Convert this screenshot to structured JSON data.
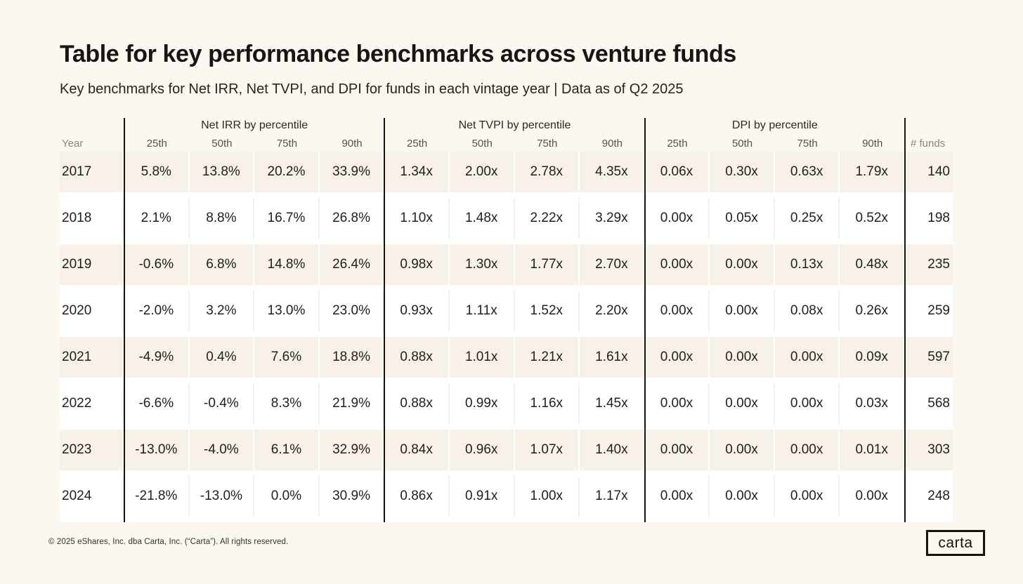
{
  "page": {
    "title": "Table for key performance benchmarks across venture funds",
    "subtitle": "Key benchmarks for Net IRR, Net TVPI, and DPI for funds in each vintage year | Data as of Q2 2025",
    "footer": "© 2025 eShares, Inc. dba Carta, Inc. (“Carta”). All rights reserved.",
    "logo_text": "carta"
  },
  "colors": {
    "background": "#FCF7F0",
    "row_stripe": "#F8F1E9",
    "row_white": "#FFFFFF",
    "divider": "#15140F",
    "text": "#201F1B",
    "muted_label": "#8B867B"
  },
  "table": {
    "year_header": "Year",
    "funds_header": "# funds",
    "groups": [
      {
        "label": "Net IRR by percentile",
        "cols": [
          "25th",
          "50th",
          "75th",
          "90th"
        ]
      },
      {
        "label": "Net TVPI by percentile",
        "cols": [
          "25th",
          "50th",
          "75th",
          "90th"
        ]
      },
      {
        "label": "DPI by percentile",
        "cols": [
          "25th",
          "50th",
          "75th",
          "90th"
        ]
      }
    ],
    "rows": [
      {
        "year": "2017",
        "irr": [
          "5.8%",
          "13.8%",
          "20.2%",
          "33.9%"
        ],
        "tvpi": [
          "1.34x",
          "2.00x",
          "2.78x",
          "4.35x"
        ],
        "dpi": [
          "0.06x",
          "0.30x",
          "0.63x",
          "1.79x"
        ],
        "funds": "140"
      },
      {
        "year": "2018",
        "irr": [
          "2.1%",
          "8.8%",
          "16.7%",
          "26.8%"
        ],
        "tvpi": [
          "1.10x",
          "1.48x",
          "2.22x",
          "3.29x"
        ],
        "dpi": [
          "0.00x",
          "0.05x",
          "0.25x",
          "0.52x"
        ],
        "funds": "198"
      },
      {
        "year": "2019",
        "irr": [
          "-0.6%",
          "6.8%",
          "14.8%",
          "26.4%"
        ],
        "tvpi": [
          "0.98x",
          "1.30x",
          "1.77x",
          "2.70x"
        ],
        "dpi": [
          "0.00x",
          "0.00x",
          "0.13x",
          "0.48x"
        ],
        "funds": "235"
      },
      {
        "year": "2020",
        "irr": [
          "-2.0%",
          "3.2%",
          "13.0%",
          "23.0%"
        ],
        "tvpi": [
          "0.93x",
          "1.11x",
          "1.52x",
          "2.20x"
        ],
        "dpi": [
          "0.00x",
          "0.00x",
          "0.08x",
          "0.26x"
        ],
        "funds": "259"
      },
      {
        "year": "2021",
        "irr": [
          "-4.9%",
          "0.4%",
          "7.6%",
          "18.8%"
        ],
        "tvpi": [
          "0.88x",
          "1.01x",
          "1.21x",
          "1.61x"
        ],
        "dpi": [
          "0.00x",
          "0.00x",
          "0.00x",
          "0.09x"
        ],
        "funds": "597"
      },
      {
        "year": "2022",
        "irr": [
          "-6.6%",
          "-0.4%",
          "8.3%",
          "21.9%"
        ],
        "tvpi": [
          "0.88x",
          "0.99x",
          "1.16x",
          "1.45x"
        ],
        "dpi": [
          "0.00x",
          "0.00x",
          "0.00x",
          "0.03x"
        ],
        "funds": "568"
      },
      {
        "year": "2023",
        "irr": [
          "-13.0%",
          "-4.0%",
          "6.1%",
          "32.9%"
        ],
        "tvpi": [
          "0.84x",
          "0.96x",
          "1.07x",
          "1.40x"
        ],
        "dpi": [
          "0.00x",
          "0.00x",
          "0.00x",
          "0.01x"
        ],
        "funds": "303"
      },
      {
        "year": "2024",
        "irr": [
          "-21.8%",
          "-13.0%",
          "0.0%",
          "30.9%"
        ],
        "tvpi": [
          "0.86x",
          "0.91x",
          "1.00x",
          "1.17x"
        ],
        "dpi": [
          "0.00x",
          "0.00x",
          "0.00x",
          "0.00x"
        ],
        "funds": "248"
      }
    ]
  },
  "chart_data": {
    "type": "table",
    "title": "Table for key performance benchmarks across venture funds",
    "subtitle": "Key benchmarks for Net IRR, Net TVPI, and DPI for funds in each vintage year | Data as of Q2 2025",
    "columns": [
      "Year",
      "Net IRR 25th",
      "Net IRR 50th",
      "Net IRR 75th",
      "Net IRR 90th",
      "Net TVPI 25th",
      "Net TVPI 50th",
      "Net TVPI 75th",
      "Net TVPI 90th",
      "DPI 25th",
      "DPI 50th",
      "DPI 75th",
      "DPI 90th",
      "# funds"
    ],
    "rows": [
      [
        "2017",
        "5.8%",
        "13.8%",
        "20.2%",
        "33.9%",
        "1.34x",
        "2.00x",
        "2.78x",
        "4.35x",
        "0.06x",
        "0.30x",
        "0.63x",
        "1.79x",
        140
      ],
      [
        "2018",
        "2.1%",
        "8.8%",
        "16.7%",
        "26.8%",
        "1.10x",
        "1.48x",
        "2.22x",
        "3.29x",
        "0.00x",
        "0.05x",
        "0.25x",
        "0.52x",
        198
      ],
      [
        "2019",
        "-0.6%",
        "6.8%",
        "14.8%",
        "26.4%",
        "0.98x",
        "1.30x",
        "1.77x",
        "2.70x",
        "0.00x",
        "0.00x",
        "0.13x",
        "0.48x",
        235
      ],
      [
        "2020",
        "-2.0%",
        "3.2%",
        "13.0%",
        "23.0%",
        "0.93x",
        "1.11x",
        "1.52x",
        "2.20x",
        "0.00x",
        "0.00x",
        "0.08x",
        "0.26x",
        259
      ],
      [
        "2021",
        "-4.9%",
        "0.4%",
        "7.6%",
        "18.8%",
        "0.88x",
        "1.01x",
        "1.21x",
        "1.61x",
        "0.00x",
        "0.00x",
        "0.00x",
        "0.09x",
        597
      ],
      [
        "2022",
        "-6.6%",
        "-0.4%",
        "8.3%",
        "21.9%",
        "0.88x",
        "0.99x",
        "1.16x",
        "1.45x",
        "0.00x",
        "0.00x",
        "0.00x",
        "0.03x",
        568
      ],
      [
        "2023",
        "-13.0%",
        "-4.0%",
        "6.1%",
        "32.9%",
        "0.84x",
        "0.96x",
        "1.07x",
        "1.40x",
        "0.00x",
        "0.00x",
        "0.00x",
        "0.01x",
        303
      ],
      [
        "2024",
        "-21.8%",
        "-13.0%",
        "0.0%",
        "30.9%",
        "0.86x",
        "0.91x",
        "1.00x",
        "1.17x",
        "0.00x",
        "0.00x",
        "0.00x",
        "0.00x",
        248
      ]
    ]
  }
}
